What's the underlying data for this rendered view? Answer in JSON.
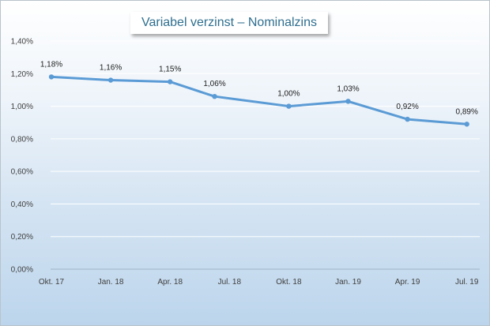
{
  "chart_data": {
    "type": "line",
    "title": "Variabel verzinst – Nominalzins",
    "xlabel": "",
    "ylabel": "",
    "ylim": [
      0,
      0.014
    ],
    "yticks": [
      "0,00%",
      "0,20%",
      "0,40%",
      "0,60%",
      "0,80%",
      "1,00%",
      "1,20%",
      "1,40%"
    ],
    "categories": [
      "Okt. 17",
      "Jan. 18",
      "Apr. 18",
      "Jul. 18",
      "Okt. 18",
      "Jan. 19",
      "Apr. 19",
      "Jul. 19"
    ],
    "series": [
      {
        "color": "#5b9bd5",
        "points": [
          {
            "pos": 0,
            "value": 0.0118,
            "label": "1,18%"
          },
          {
            "pos": 1,
            "value": 0.0116,
            "label": "1,16%"
          },
          {
            "pos": 2,
            "value": 0.0115,
            "label": "1,15%"
          },
          {
            "pos": 2.75,
            "value": 0.0106,
            "label": "1,06%"
          },
          {
            "pos": 4,
            "value": 0.01,
            "label": "1,00%"
          },
          {
            "pos": 5,
            "value": 0.0103,
            "label": "1,03%"
          },
          {
            "pos": 6,
            "value": 0.0092,
            "label": "0,92%"
          },
          {
            "pos": 7,
            "value": 0.0089,
            "label": "0,89%"
          }
        ]
      }
    ],
    "grid": true,
    "legend": "none"
  }
}
